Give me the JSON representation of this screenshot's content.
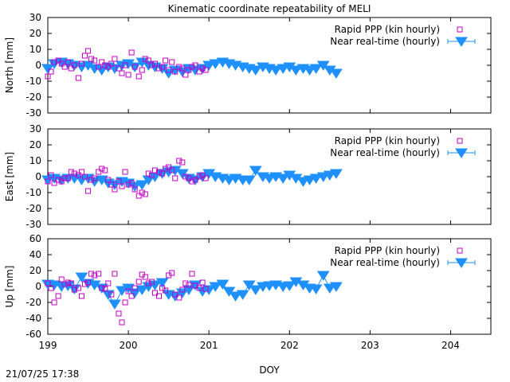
{
  "chart_data": {
    "type": "scatter",
    "title": "Kinematic coordinate repeatability of MELI",
    "xlabel": "DOY",
    "xlim": [
      199,
      204.5
    ],
    "xticks": [
      199,
      200,
      201,
      202,
      203,
      204
    ],
    "timestamp": "21/07/25 17:38",
    "colors": {
      "rapid": "#bf00bf",
      "nrt": "#1e90ff"
    },
    "panels": [
      {
        "ylabel": "North [mm]",
        "ylim": [
          -30,
          30
        ],
        "yticks": [
          -30,
          -20,
          -10,
          0,
          10,
          20,
          30
        ],
        "legend": [
          "Rapid PPP (kin hourly)",
          "Near real-time (hourly)"
        ],
        "series": [
          {
            "name": "Rapid PPP (kin hourly)",
            "marker": "square",
            "x": [
              199.0,
              199.04,
              199.08,
              199.13,
              199.17,
              199.21,
              199.25,
              199.29,
              199.33,
              199.38,
              199.42,
              199.46,
              199.5,
              199.54,
              199.58,
              199.63,
              199.67,
              199.71,
              199.75,
              199.79,
              199.83,
              199.88,
              199.92,
              199.96,
              200.0,
              200.04,
              200.08,
              200.13,
              200.17,
              200.21,
              200.25,
              200.29,
              200.33,
              200.38,
              200.42,
              200.46,
              200.5,
              200.54,
              200.58,
              200.63,
              200.67,
              200.71,
              200.75,
              200.79,
              200.83,
              200.88,
              200.92,
              200.96
            ],
            "y": [
              -7,
              -4,
              2,
              3,
              1,
              -1,
              2,
              -2,
              0,
              -8,
              1,
              6,
              9,
              4,
              3,
              -1,
              2,
              0,
              -1,
              1,
              4,
              -2,
              -5,
              0,
              -6,
              8,
              -1,
              -7,
              -3,
              4,
              3,
              0,
              1,
              -2,
              -1,
              3,
              -3,
              2,
              -4,
              -1,
              -2,
              -6,
              -3,
              -1,
              0,
              -4,
              -2,
              -3
            ]
          },
          {
            "name": "Near real-time (hourly)",
            "marker": "triangle",
            "x": [
              199.0,
              199.08,
              199.17,
              199.25,
              199.33,
              199.42,
              199.5,
              199.58,
              199.67,
              199.75,
              199.83,
              199.92,
              200.0,
              200.08,
              200.17,
              200.25,
              200.33,
              200.42,
              200.5,
              200.58,
              200.67,
              200.75,
              200.83,
              200.92,
              201.0,
              201.08,
              201.17,
              201.25,
              201.33,
              201.42,
              201.5,
              201.58,
              201.67,
              201.75,
              201.83,
              201.92,
              202.0,
              202.08,
              202.17,
              202.25,
              202.33,
              202.42,
              202.5,
              202.58
            ],
            "y": [
              -2,
              1,
              2,
              1,
              0,
              -1,
              0,
              -2,
              -3,
              -1,
              -2,
              0,
              1,
              -1,
              2,
              0,
              -1,
              -2,
              -5,
              -3,
              -4,
              -2,
              -3,
              -2,
              0,
              1,
              2,
              1,
              0,
              -1,
              -2,
              -3,
              -1,
              -2,
              -3,
              -2,
              -1,
              -3,
              -2,
              -3,
              -2,
              0,
              -3,
              -5
            ]
          }
        ]
      },
      {
        "ylabel": "East [mm]",
        "ylim": [
          -30,
          30
        ],
        "yticks": [
          -30,
          -20,
          -10,
          0,
          10,
          20,
          30
        ],
        "legend": [
          "Rapid PPP (kin hourly)",
          "Near real-time (hourly)"
        ],
        "series": [
          {
            "name": "Rapid PPP (kin hourly)",
            "marker": "square",
            "x": [
              199.0,
              199.04,
              199.08,
              199.13,
              199.17,
              199.21,
              199.25,
              199.29,
              199.33,
              199.38,
              199.42,
              199.46,
              199.5,
              199.54,
              199.58,
              199.63,
              199.67,
              199.71,
              199.75,
              199.79,
              199.83,
              199.88,
              199.92,
              199.96,
              200.0,
              200.04,
              200.08,
              200.13,
              200.17,
              200.21,
              200.25,
              200.29,
              200.33,
              200.38,
              200.42,
              200.46,
              200.5,
              200.54,
              200.58,
              200.63,
              200.67,
              200.71,
              200.75,
              200.79,
              200.83,
              200.88,
              200.92,
              200.96
            ],
            "y": [
              -3,
              1,
              -4,
              -2,
              -3,
              -1,
              -1,
              3,
              2,
              1,
              3,
              0,
              -9,
              -2,
              -1,
              3,
              5,
              4,
              -2,
              -5,
              -8,
              -3,
              -6,
              3,
              -5,
              -4,
              -8,
              -12,
              -10,
              -11,
              2,
              1,
              4,
              3,
              2,
              5,
              6,
              4,
              -1,
              10,
              9,
              0,
              -1,
              -3,
              -2,
              0,
              1,
              -1
            ]
          },
          {
            "name": "Near real-time (hourly)",
            "marker": "triangle",
            "x": [
              199.0,
              199.08,
              199.17,
              199.25,
              199.33,
              199.42,
              199.5,
              199.58,
              199.67,
              199.75,
              199.83,
              199.92,
              200.0,
              200.08,
              200.17,
              200.25,
              200.33,
              200.42,
              200.5,
              200.58,
              200.67,
              200.75,
              200.83,
              200.92,
              201.0,
              201.08,
              201.17,
              201.25,
              201.33,
              201.42,
              201.5,
              201.58,
              201.67,
              201.75,
              201.83,
              201.92,
              202.0,
              202.08,
              202.17,
              202.25,
              202.33,
              202.42,
              202.5,
              202.58
            ],
            "y": [
              -2,
              -1,
              -2,
              -1,
              -1,
              -2,
              -1,
              -3,
              -2,
              -4,
              -5,
              -3,
              -4,
              -6,
              -5,
              -2,
              0,
              2,
              3,
              4,
              2,
              -1,
              -2,
              0,
              2,
              0,
              -1,
              -2,
              -1,
              -2,
              -2,
              4,
              0,
              -1,
              0,
              -1,
              1,
              -1,
              -3,
              -2,
              -1,
              0,
              1,
              2
            ]
          }
        ]
      },
      {
        "ylabel": "Up [mm]",
        "ylim": [
          -60,
          60
        ],
        "yticks": [
          -60,
          -40,
          -20,
          0,
          20,
          40,
          60
        ],
        "legend": [
          "Rapid PPP (kin hourly)",
          "Near real-time (hourly)"
        ],
        "series": [
          {
            "name": "Rapid PPP (kin hourly)",
            "marker": "square",
            "x": [
              199.0,
              199.04,
              199.08,
              199.13,
              199.17,
              199.21,
              199.25,
              199.29,
              199.33,
              199.38,
              199.42,
              199.46,
              199.5,
              199.54,
              199.58,
              199.63,
              199.67,
              199.71,
              199.75,
              199.79,
              199.83,
              199.88,
              199.92,
              199.96,
              200.0,
              200.04,
              200.08,
              200.13,
              200.17,
              200.21,
              200.25,
              200.29,
              200.33,
              200.38,
              200.42,
              200.46,
              200.5,
              200.54,
              200.58,
              200.63,
              200.67,
              200.71,
              200.75,
              200.79,
              200.83,
              200.88,
              200.92,
              200.96
            ],
            "y": [
              4,
              -2,
              -20,
              -12,
              9,
              3,
              5,
              4,
              -4,
              -2,
              -12,
              3,
              5,
              16,
              14,
              16,
              -2,
              -3,
              4,
              -10,
              16,
              -34,
              -45,
              -20,
              -6,
              -12,
              -2,
              6,
              15,
              12,
              4,
              6,
              -8,
              -12,
              -2,
              -5,
              14,
              17,
              -10,
              -14,
              -4,
              4,
              2,
              16,
              1,
              -2,
              5,
              -3
            ]
          },
          {
            "name": "Near real-time (hourly)",
            "marker": "triangle",
            "x": [
              199.0,
              199.08,
              199.17,
              199.25,
              199.33,
              199.42,
              199.5,
              199.58,
              199.67,
              199.75,
              199.83,
              199.92,
              200.0,
              200.08,
              200.17,
              200.25,
              200.33,
              200.42,
              200.5,
              200.58,
              200.67,
              200.75,
              200.83,
              200.92,
              201.0,
              201.08,
              201.17,
              201.25,
              201.33,
              201.42,
              201.5,
              201.58,
              201.67,
              201.75,
              201.83,
              201.92,
              202.0,
              202.08,
              202.17,
              202.25,
              202.33,
              202.42,
              202.5,
              202.58
            ],
            "y": [
              3,
              2,
              0,
              1,
              -3,
              12,
              4,
              2,
              -2,
              -10,
              -22,
              -5,
              -2,
              -8,
              -4,
              0,
              2,
              5,
              -10,
              -12,
              -8,
              -4,
              2,
              -6,
              -4,
              0,
              3,
              -6,
              -12,
              -10,
              2,
              -4,
              0,
              1,
              2,
              0,
              1,
              6,
              2,
              -2,
              -3,
              14,
              -2,
              0
            ]
          }
        ]
      }
    ]
  }
}
